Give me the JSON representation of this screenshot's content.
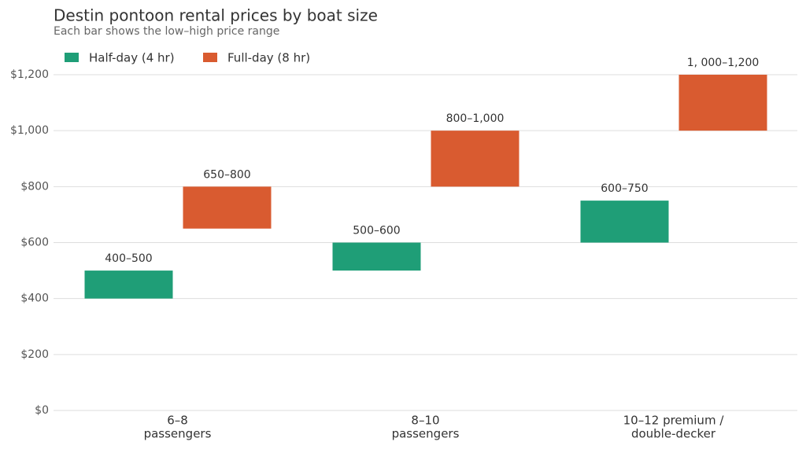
{
  "chart_data": {
    "type": "floating-bar",
    "title": "Destin pontoon rental prices by boat size",
    "subtitle": "Each bar shows the low–high price range",
    "categories": [
      [
        "6–8",
        "passengers"
      ],
      [
        "8–10",
        "passengers"
      ],
      [
        "10–12 premium /",
        "double-decker"
      ]
    ],
    "series": [
      {
        "name": "Half-day (4 hr)",
        "color": "#1f9e77",
        "low": [
          400,
          500,
          600
        ],
        "high": [
          500,
          600,
          750
        ],
        "value_labels": [
          "400–500",
          "500–600",
          "600–750"
        ]
      },
      {
        "name": "Full-day (8 hr)",
        "color": "#d95b30",
        "low": [
          650,
          800,
          1000
        ],
        "high": [
          800,
          1000,
          1200
        ],
        "value_labels": [
          "650–800",
          "800–1,000",
          "1, 000–1,200"
        ]
      }
    ],
    "ylim": [
      0,
      1200
    ],
    "yticks": [
      {
        "value": 0,
        "label": "$0"
      },
      {
        "value": 200,
        "label": "$200"
      },
      {
        "value": 400,
        "label": "$400"
      },
      {
        "value": 600,
        "label": "$600"
      },
      {
        "value": 800,
        "label": "$800"
      },
      {
        "value": 1000,
        "label": "$1,000"
      },
      {
        "value": 1200,
        "label": "$1,200"
      }
    ],
    "grid": true,
    "legend": "top-left"
  }
}
